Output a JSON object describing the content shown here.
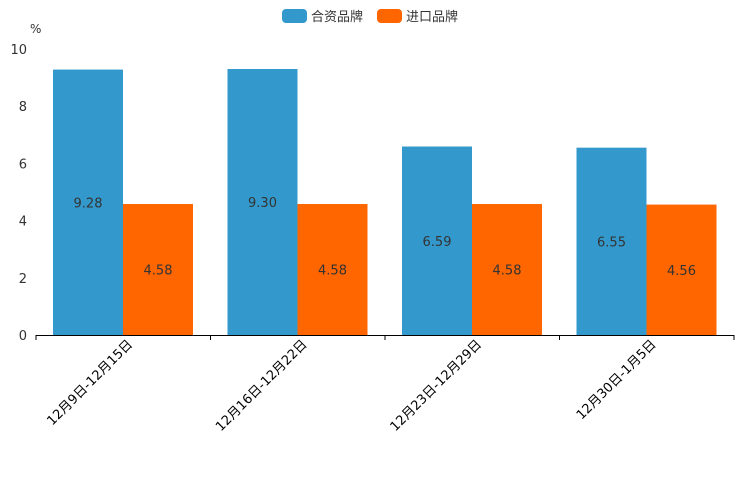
{
  "chart_data": {
    "type": "bar",
    "title": "",
    "xlabel": "",
    "ylabel": "%",
    "ylim": [
      0,
      10
    ],
    "yticks": [
      0,
      2,
      4,
      6,
      8,
      10
    ],
    "categories": [
      "12月9日-12月15日",
      "12月16日-12月22日",
      "12月23日-12月29日",
      "12月30日-1月5日"
    ],
    "series": [
      {
        "name": "合资品牌",
        "color": "#3399cc",
        "values": [
          9.28,
          9.3,
          6.59,
          6.55
        ]
      },
      {
        "name": "进口品牌",
        "color": "#ff6600",
        "values": [
          4.58,
          4.58,
          4.58,
          4.56
        ]
      }
    ],
    "legend": "top-center",
    "grid": false
  }
}
